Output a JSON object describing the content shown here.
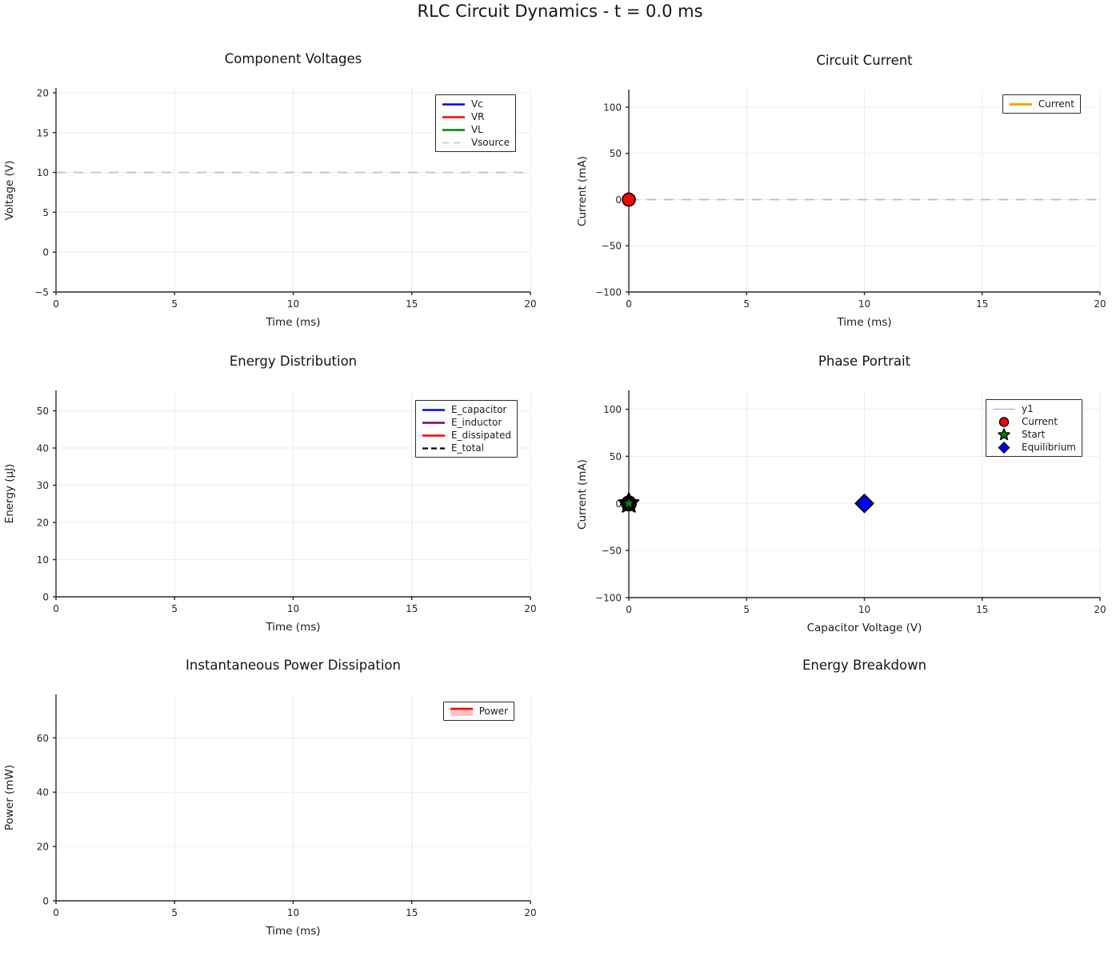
{
  "page": {
    "suptitle": "RLC Circuit Dynamics - t = 0.0 ms",
    "background": "#ffffff"
  },
  "colors": {
    "grid": "#ececec",
    "spine": "#2a2a2a",
    "dashed_reference": "#c3c3c3"
  },
  "chart_data": [
    {
      "id": "component-voltages",
      "type": "line",
      "title": "Component Voltages",
      "xlabel": "Time (ms)",
      "ylabel": "Voltage (V)",
      "xlim": [
        0,
        20
      ],
      "ylim": [
        -5,
        20.6
      ],
      "xticks": [
        0,
        5,
        10,
        15,
        20
      ],
      "yticks": [
        -5,
        0,
        5,
        10,
        15,
        20
      ],
      "grid": true,
      "series": [
        {
          "name": "Vc",
          "color": "#0000ff",
          "width": 2,
          "points": []
        },
        {
          "name": "VR",
          "color": "#ff0000",
          "width": 2,
          "points": []
        },
        {
          "name": "VL",
          "color": "#008000",
          "width": 2,
          "points": []
        },
        {
          "name": "Vsource",
          "color": "#c3c3c3",
          "width": 1.8,
          "dash": "12 10",
          "points": [
            [
              0,
              10
            ],
            [
              20,
              10
            ]
          ]
        }
      ],
      "markers": [],
      "legend": {
        "position": "upper-right",
        "entries": [
          {
            "label": "Vc",
            "swatch": "line",
            "color": "#0000ff",
            "width": 2.5
          },
          {
            "label": "VR",
            "swatch": "line",
            "color": "#ff0000",
            "width": 2.5
          },
          {
            "label": "VL",
            "swatch": "line",
            "color": "#008000",
            "width": 2.5
          },
          {
            "label": "Vsource",
            "swatch": "line",
            "color": "#c3c3c3",
            "width": 1.5,
            "dash": "8 6"
          }
        ]
      }
    },
    {
      "id": "circuit-current",
      "type": "line",
      "title": "Circuit Current",
      "xlabel": "Time (ms)",
      "ylabel": "Current (mA)",
      "xlim": [
        0,
        20
      ],
      "ylim": [
        -100,
        119
      ],
      "xticks": [
        0,
        5,
        10,
        15,
        20
      ],
      "yticks": [
        -100,
        -50,
        0,
        50,
        100
      ],
      "grid": true,
      "series": [
        {
          "name": "zero-reference",
          "color": "#bcbcbc",
          "width": 1.8,
          "dash": "12 10",
          "points": [
            [
              0,
              0
            ],
            [
              20,
              0
            ]
          ]
        },
        {
          "name": "Current",
          "color": "#ffa500",
          "width": 3,
          "points": [
            [
              0,
              0
            ]
          ]
        }
      ],
      "markers": [
        {
          "shape": "circle",
          "x": 0,
          "y": 0,
          "r": 8,
          "color": "#ff0000",
          "edge": "#000000",
          "edge_width": 1.6
        }
      ],
      "legend": {
        "position": "upper-right",
        "entries": [
          {
            "label": "Current",
            "swatch": "line",
            "color": "#ffa500",
            "width": 3
          }
        ]
      }
    },
    {
      "id": "energy-distribution",
      "type": "line",
      "title": "Energy Distribution",
      "xlabel": "Time (ms)",
      "ylabel": "Energy (μJ)",
      "xlim": [
        0,
        20
      ],
      "ylim": [
        0,
        55.5
      ],
      "xticks": [
        0,
        5,
        10,
        15,
        20
      ],
      "yticks": [
        0,
        10,
        20,
        30,
        40,
        50
      ],
      "grid": true,
      "series": [
        {
          "name": "E_capacitor",
          "color": "#0000ff",
          "width": 2,
          "points": []
        },
        {
          "name": "E_inductor",
          "color": "#800080",
          "width": 2,
          "points": []
        },
        {
          "name": "E_dissipated",
          "color": "#ff0000",
          "width": 2,
          "points": []
        },
        {
          "name": "E_total",
          "color": "#000000",
          "width": 2,
          "dash": "8 5",
          "points": []
        }
      ],
      "markers": [],
      "legend": {
        "position": "upper-right",
        "entries": [
          {
            "label": "E_capacitor",
            "swatch": "line",
            "color": "#0000ff",
            "width": 2.5
          },
          {
            "label": "E_inductor",
            "swatch": "line",
            "color": "#800080",
            "width": 2.5
          },
          {
            "label": "E_dissipated",
            "swatch": "line",
            "color": "#ff0000",
            "width": 2.5
          },
          {
            "label": "E_total",
            "swatch": "line",
            "color": "#000000",
            "width": 2.2,
            "dash": "7 4"
          }
        ]
      }
    },
    {
      "id": "phase-portrait",
      "type": "scatter",
      "title": "Phase Portrait",
      "xlabel": "Capacitor Voltage (V)",
      "ylabel": "Current (mA)",
      "xlim": [
        0,
        20
      ],
      "ylim": [
        -100,
        120
      ],
      "xticks": [
        0,
        5,
        10,
        15,
        20
      ],
      "yticks": [
        -100,
        -50,
        0,
        50,
        100
      ],
      "grid": true,
      "series": [
        {
          "name": "y1",
          "color": "#c9a0dc",
          "width": 1.2,
          "points": []
        }
      ],
      "markers": [
        {
          "shape": "circle",
          "x": 0,
          "y": 0,
          "r": 9,
          "color": "#ff0000",
          "edge": "#000000",
          "edge_width": 2
        },
        {
          "shape": "star",
          "x": 0,
          "y": 0,
          "r": 13,
          "color": "#000000",
          "edge": "#000000",
          "edge_width": 2
        },
        {
          "shape": "star",
          "x": 0,
          "y": 0,
          "r": 5.5,
          "color": "#008000",
          "edge": "#008000",
          "edge_width": 0.5
        },
        {
          "shape": "diamond",
          "x": 10,
          "y": 0,
          "r": 11,
          "color": "#0000ff",
          "edge": "#000000",
          "edge_width": 2
        }
      ],
      "legend": {
        "position": "upper-right",
        "entries": [
          {
            "label": "y1",
            "swatch": "line",
            "color": "#c9a0dc",
            "width": 1.2
          },
          {
            "label": "Current",
            "swatch": "circle",
            "color": "#ff0000"
          },
          {
            "label": "Start",
            "swatch": "star",
            "color": "#008000"
          },
          {
            "label": "Equilibrium",
            "swatch": "diamond",
            "color": "#0000ff"
          }
        ]
      }
    },
    {
      "id": "power-dissipation",
      "type": "area",
      "title": "Instantaneous Power Dissipation",
      "xlabel": "Time (ms)",
      "ylabel": "Power (mW)",
      "xlim": [
        0,
        20
      ],
      "ylim": [
        0,
        76
      ],
      "xticks": [
        0,
        5,
        10,
        15,
        20
      ],
      "yticks": [
        0,
        20,
        40,
        60
      ],
      "grid": true,
      "series": [
        {
          "name": "Power",
          "color": "#ff0000",
          "width": 2,
          "points": []
        }
      ],
      "markers": [],
      "legend": {
        "position": "upper-right",
        "entries": [
          {
            "label": "Power",
            "swatch": "patch",
            "color": "#ff0000",
            "fill": "#ffbfc8"
          }
        ]
      }
    },
    {
      "id": "energy-breakdown",
      "type": "bar",
      "title": "Energy Breakdown",
      "empty": true,
      "series": [],
      "markers": []
    }
  ]
}
